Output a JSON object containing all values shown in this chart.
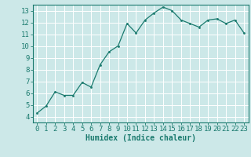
{
  "x": [
    0,
    1,
    2,
    3,
    4,
    5,
    6,
    7,
    8,
    9,
    10,
    11,
    12,
    13,
    14,
    15,
    16,
    17,
    18,
    19,
    20,
    21,
    22,
    23
  ],
  "y": [
    4.3,
    4.9,
    6.1,
    5.8,
    5.8,
    6.9,
    6.5,
    8.4,
    9.5,
    10.0,
    11.9,
    11.1,
    12.2,
    12.8,
    13.3,
    13.0,
    12.2,
    11.9,
    11.6,
    12.2,
    12.3,
    11.9,
    12.2,
    11.1
  ],
  "line_color": "#1a7a6e",
  "marker": ".",
  "marker_size": 3,
  "bg_color": "#cce8e8",
  "grid_color": "#ffffff",
  "axis_bg": "#cce8e8",
  "xlabel": "Humidex (Indice chaleur)",
  "xlim": [
    -0.5,
    23.5
  ],
  "ylim": [
    3.5,
    13.5
  ],
  "yticks": [
    4,
    5,
    6,
    7,
    8,
    9,
    10,
    11,
    12,
    13
  ],
  "xticks": [
    0,
    1,
    2,
    3,
    4,
    5,
    6,
    7,
    8,
    9,
    10,
    11,
    12,
    13,
    14,
    15,
    16,
    17,
    18,
    19,
    20,
    21,
    22,
    23
  ],
  "tick_label_color": "#1a7a6e",
  "axis_color": "#1a7a6e",
  "xlabel_color": "#1a7a6e",
  "xlabel_fontsize": 7,
  "tick_fontsize": 6.5
}
